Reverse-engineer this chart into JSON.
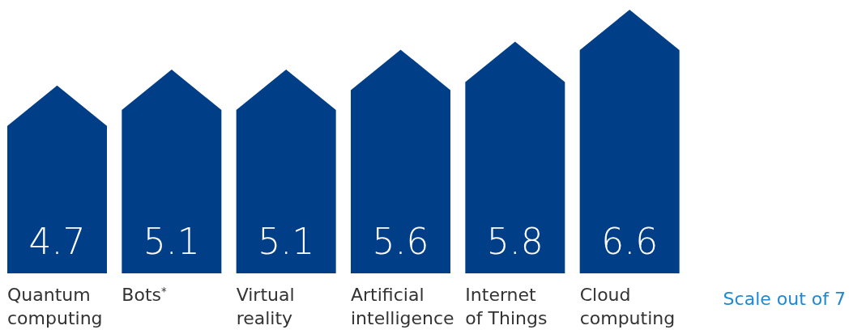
{
  "chart_data": {
    "type": "bar",
    "categories": [
      "Quantum computing",
      "Bots$^{*}$",
      "Virtual reality",
      "Artificial intelligence",
      "Internet of Things",
      "Cloud computing"
    ],
    "values": [
      4.7,
      5.1,
      5.1,
      5.6,
      5.8,
      6.6
    ],
    "color": "#003f87",
    "data_labels": true,
    "annotations": [
      "Scale out of 7"
    ]
  }
}
